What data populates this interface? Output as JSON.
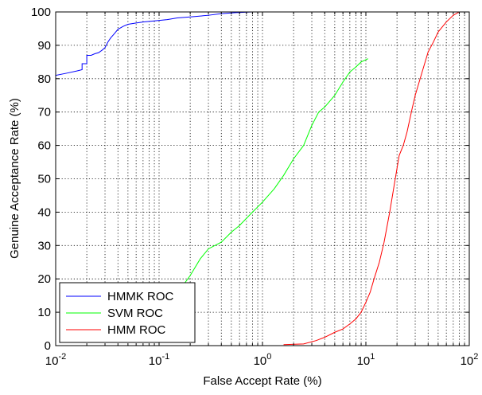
{
  "chart_data": {
    "type": "line",
    "title": "",
    "xlabel": "False Accept Rate (%)",
    "ylabel": "Genuine Acceptance Rate (%)",
    "xscale": "log",
    "xlim": [
      0.01,
      100
    ],
    "ylim": [
      0,
      100
    ],
    "grid": true,
    "legend_position": "bottom-left",
    "x_ticks": [
      {
        "base": "10",
        "exp": "-2"
      },
      {
        "base": "10",
        "exp": "-1"
      },
      {
        "base": "10",
        "exp": "0"
      },
      {
        "base": "10",
        "exp": "1"
      },
      {
        "base": "10",
        "exp": "2"
      }
    ],
    "y_ticks": [
      "0",
      "10",
      "20",
      "30",
      "40",
      "50",
      "60",
      "70",
      "80",
      "90",
      "100"
    ],
    "series": [
      {
        "name": "HMMK ROC",
        "color": "#0000ff",
        "points": [
          [
            0.01,
            81
          ],
          [
            0.013,
            81.7
          ],
          [
            0.016,
            82.3
          ],
          [
            0.018,
            82.7
          ],
          [
            0.018,
            84.5
          ],
          [
            0.02,
            84.5
          ],
          [
            0.02,
            87
          ],
          [
            0.022,
            87
          ],
          [
            0.024,
            87.5
          ],
          [
            0.026,
            87.8
          ],
          [
            0.028,
            88.5
          ],
          [
            0.03,
            89.3
          ],
          [
            0.032,
            91
          ],
          [
            0.034,
            92.2
          ],
          [
            0.037,
            93.5
          ],
          [
            0.04,
            94.8
          ],
          [
            0.045,
            95.7
          ],
          [
            0.05,
            96.3
          ],
          [
            0.06,
            96.7
          ],
          [
            0.07,
            97
          ],
          [
            0.09,
            97.3
          ],
          [
            0.12,
            97.7
          ],
          [
            0.15,
            98.2
          ],
          [
            0.2,
            98.5
          ],
          [
            0.3,
            99
          ],
          [
            0.4,
            99.5
          ],
          [
            0.55,
            99.8
          ],
          [
            0.8,
            100
          ],
          [
            2,
            100
          ],
          [
            10,
            100
          ],
          [
            100,
            100
          ]
        ]
      },
      {
        "name": "SVM ROC",
        "color": "#00ff00",
        "points": [
          [
            0.17,
            18
          ],
          [
            0.2,
            21
          ],
          [
            0.25,
            26
          ],
          [
            0.3,
            29
          ],
          [
            0.4,
            31
          ],
          [
            0.5,
            34
          ],
          [
            0.6,
            36
          ],
          [
            0.8,
            40
          ],
          [
            1,
            43
          ],
          [
            1.3,
            47
          ],
          [
            1.6,
            51
          ],
          [
            2,
            56
          ],
          [
            2.5,
            60
          ],
          [
            3,
            66
          ],
          [
            3.5,
            70
          ],
          [
            4,
            71.5
          ],
          [
            5,
            75
          ],
          [
            6,
            79
          ],
          [
            7,
            82
          ],
          [
            8,
            83.5
          ],
          [
            9,
            85
          ],
          [
            10.5,
            86
          ]
        ]
      },
      {
        "name": "HMM ROC",
        "color": "#ff0000",
        "points": [
          [
            1.6,
            0.3
          ],
          [
            2.5,
            0.5
          ],
          [
            3.3,
            1.5
          ],
          [
            4,
            2.5
          ],
          [
            5,
            4
          ],
          [
            6,
            5
          ],
          [
            7,
            6.5
          ],
          [
            8,
            8
          ],
          [
            9,
            10
          ],
          [
            10,
            13
          ],
          [
            11,
            16
          ],
          [
            12,
            20
          ],
          [
            13.5,
            25
          ],
          [
            15,
            31
          ],
          [
            17,
            40
          ],
          [
            19,
            49
          ],
          [
            21,
            57
          ],
          [
            23,
            60
          ],
          [
            25,
            64
          ],
          [
            28,
            71
          ],
          [
            30,
            75
          ],
          [
            35,
            82
          ],
          [
            40,
            88
          ],
          [
            45,
            91
          ],
          [
            50,
            94
          ],
          [
            60,
            97
          ],
          [
            70,
            99
          ],
          [
            80,
            100
          ],
          [
            100,
            100
          ]
        ]
      }
    ]
  }
}
